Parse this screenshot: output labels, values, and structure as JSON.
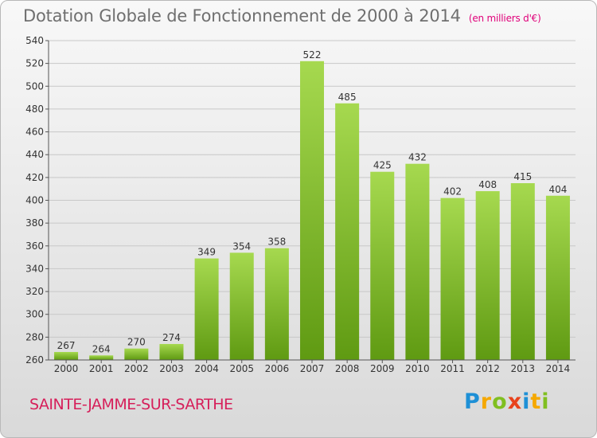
{
  "header": {
    "title": "Dotation Globale de Fonctionnement de 2000 à 2014",
    "unit": "(en milliers d'€)"
  },
  "footer": {
    "location": "SAINTE-JAMME-SUR-SARTHE",
    "brand": "Proxiti"
  },
  "colors": {
    "bar_light": "#a6d94f",
    "bar_dark": "#5f9a12",
    "grid": "#c8c8c8"
  },
  "chart_data": {
    "type": "bar",
    "title": "Dotation Globale de Fonctionnement de 2000 à 2014",
    "subtitle": "(en milliers d'€)",
    "xlabel": "",
    "ylabel": "",
    "categories": [
      "2000",
      "2001",
      "2002",
      "2003",
      "2004",
      "2005",
      "2006",
      "2007",
      "2008",
      "2009",
      "2010",
      "2011",
      "2012",
      "2013",
      "2014"
    ],
    "values": [
      267,
      264,
      270,
      274,
      349,
      354,
      358,
      522,
      485,
      425,
      432,
      402,
      408,
      415,
      404
    ],
    "ylim": [
      260,
      540
    ],
    "yticks": [
      260,
      280,
      300,
      320,
      340,
      360,
      380,
      400,
      420,
      440,
      460,
      480,
      500,
      520,
      540
    ],
    "grid": true,
    "legend": "none"
  }
}
